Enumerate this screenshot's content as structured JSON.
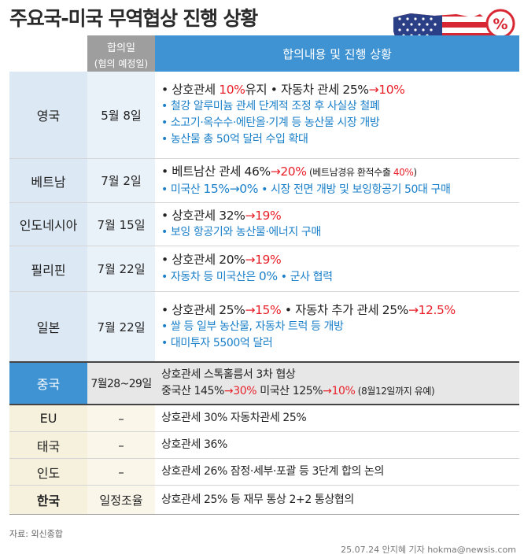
{
  "title": "주요국-미국 무역협상 진행 상황",
  "header": {
    "date_main": "합의일",
    "date_sub": "(협의 예정일)",
    "content": "합의내용 및 진행 상황"
  },
  "rows": [
    {
      "country": "영국",
      "date": "5월 8일",
      "l1": {
        "a": "• 상호관세 ",
        "b": "10%",
        "c": "유지  • 자동차 관세 25%",
        "d": "→10%"
      },
      "l2": "• 철강 알루미늄 관세 단계적 조정 후 사실상 철폐",
      "l3": "• 소고기·옥수수·에탄올·기계 등 농산물 시장 개방",
      "l4": "• 농산물 총 50억 달러 수입 확대"
    },
    {
      "country": "베트남",
      "date": "7월 2일",
      "l1": {
        "a": "• 베트남산 관세 46%",
        "b": "→20%",
        "c": " (베트남경유 환적수출 ",
        "d": "40%",
        "e": ")"
      },
      "l2": {
        "a": "• 미국산 ",
        "b": "15%→0%",
        "c": "  • 시장 전면 개방 및 보잉항공기 50대 구매"
      }
    },
    {
      "country": "인도네시아",
      "date": "7월 15일",
      "l1": {
        "a": "• 상호관세 32%",
        "b": "→19%"
      },
      "l2": "• 보잉 항공기와 농산물·에너지 구매"
    },
    {
      "country": "필리핀",
      "date": "7월 22일",
      "l1": {
        "a": "• 상호관세 20%",
        "b": "→19%"
      },
      "l2": {
        "a": "• 자동차 등 미국산은 ",
        "b": "0%",
        "c": " • 군사 협력"
      }
    },
    {
      "country": "일본",
      "date": "7월 22일",
      "l1": {
        "a": "• 상호관세 25%",
        "b": "→15%",
        "c": "  • 자동차 추가 관세 25%",
        "d": "→12.5%"
      },
      "l2": "• 쌀 등 일부 농산물, 자동차 트럭 등 개방",
      "l3": "• 대미투자 5500억 달러"
    }
  ],
  "china": {
    "country": "중국",
    "date": "7월28~29일",
    "l1": "상호관세 스톡홀름서 3차 협상",
    "l2": {
      "a": "중국산 145%",
      "b": "→30%",
      "c": "  미국산 125%",
      "d": "→10%",
      "e": " (8월12일까지 유예)"
    }
  },
  "others": [
    {
      "country": "EU",
      "date": "–",
      "text": "상호관세 30% 자동차관세 25%"
    },
    {
      "country": "태국",
      "date": "–",
      "text": "상호관세 36%"
    },
    {
      "country": "인도",
      "date": "–",
      "text": "상호관세 26% 잠정·세부·포괄 등 3단계 합의 논의"
    },
    {
      "country": "한국",
      "date": "일정조율",
      "text": "상호관세 25% 등 재무 통상 2+2 통상협의"
    }
  ],
  "percent_symbol": "%",
  "source": "자료: 외신종합",
  "credit": "25.07.24 안지혜 기자 hokma@newsis.com",
  "colors": {
    "header_blue": "#3f93d3",
    "highlight_red": "#e8202a",
    "bullet_blue": "#1a7fc9"
  }
}
